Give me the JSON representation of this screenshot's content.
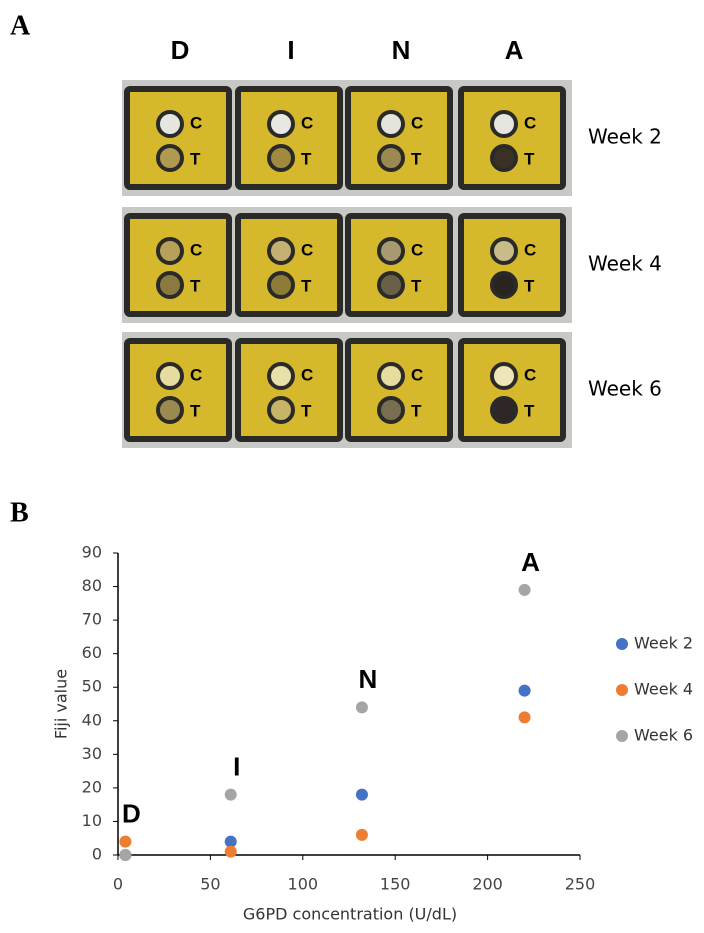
{
  "panel_a": {
    "label": "A",
    "columns": [
      "D",
      "I",
      "N",
      "A"
    ],
    "rows": [
      "Week 2",
      "Week 4",
      "Week 6"
    ],
    "spot_labels": [
      "C",
      "T"
    ]
  },
  "chart_data": {
    "type": "scatter",
    "panel_label": "B",
    "x_label": "G6PD concentration (U/dL)",
    "y_label": "Fiji value",
    "x": [
      4,
      61,
      132,
      220
    ],
    "point_labels": [
      "D",
      "I",
      "N",
      "A"
    ],
    "series": [
      {
        "name": "Week 2",
        "color": "#4472c4",
        "values": [
          0,
          4,
          18,
          49
        ]
      },
      {
        "name": "Week 4",
        "color": "#ed7d31",
        "values": [
          4,
          1,
          6,
          41
        ]
      },
      {
        "name": "Week 6",
        "color": "#a5a5a5",
        "values": [
          0,
          18,
          44,
          79
        ]
      }
    ],
    "xlim": [
      0,
      250
    ],
    "xticks": [
      0,
      50,
      100,
      150,
      200,
      250
    ],
    "ylim": [
      0,
      90
    ],
    "yticks": [
      0,
      10,
      20,
      30,
      40,
      50,
      60,
      70,
      80,
      90
    ],
    "grid": false,
    "legend": "right"
  }
}
